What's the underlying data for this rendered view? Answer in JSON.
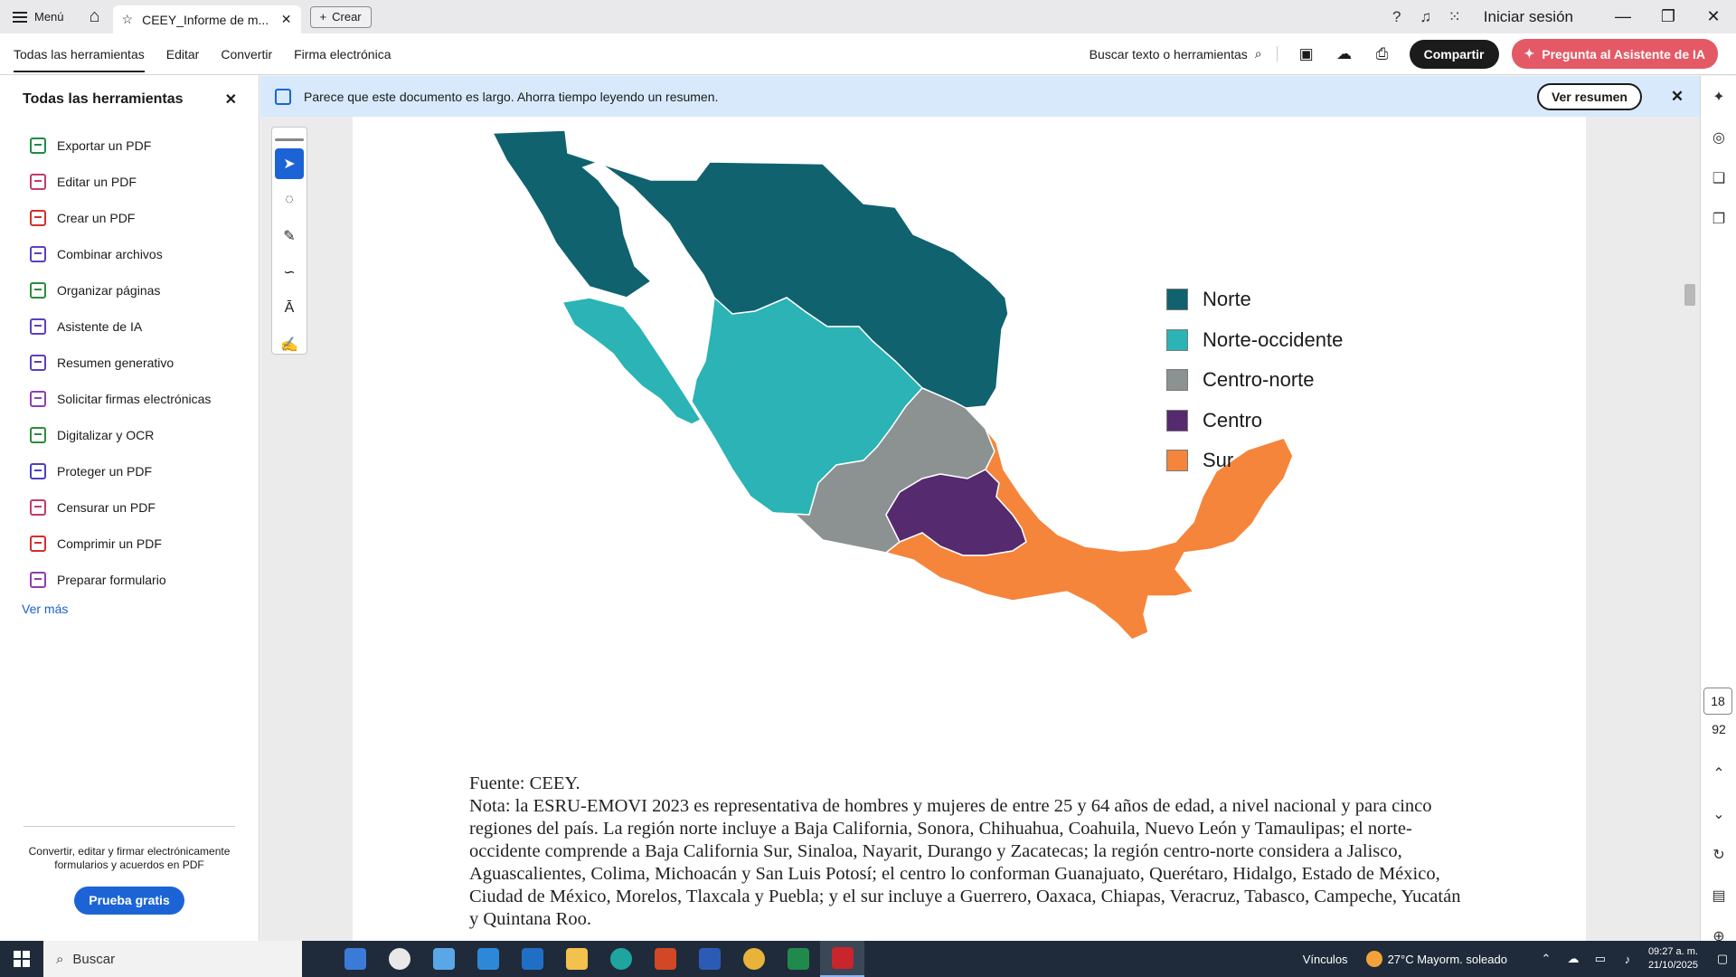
{
  "titlebar": {
    "menu_label": "Menú",
    "tab_title": "CEEY_Informe de m...",
    "create_label": "Crear",
    "signin_label": "Iniciar sesión"
  },
  "toolbar": {
    "nav": [
      "Todas las herramientas",
      "Editar",
      "Convertir",
      "Firma electrónica"
    ],
    "search_label": "Buscar texto o herramientas",
    "share_label": "Compartir",
    "ai_label": "Pregunta al Asistente de IA"
  },
  "left_panel": {
    "title": "Todas las herramientas",
    "tools": [
      {
        "label": "Exportar un PDF",
        "color": "#1e8b4a"
      },
      {
        "label": "Editar un PDF",
        "color": "#c23b6b"
      },
      {
        "label": "Crear un PDF",
        "color": "#d32f2f"
      },
      {
        "label": "Combinar archivos",
        "color": "#5b3fc4"
      },
      {
        "label": "Organizar páginas",
        "color": "#2e8b3a"
      },
      {
        "label": "Asistente de IA",
        "color": "#5b3fc4"
      },
      {
        "label": "Resumen generativo",
        "color": "#5b3fc4"
      },
      {
        "label": "Solicitar firmas electrónicas",
        "color": "#8e3fb0"
      },
      {
        "label": "Digitalizar y OCR",
        "color": "#2e8b3a"
      },
      {
        "label": "Proteger un PDF",
        "color": "#4a3fc4"
      },
      {
        "label": "Censurar un PDF",
        "color": "#c23b6b"
      },
      {
        "label": "Comprimir un PDF",
        "color": "#d32f2f"
      },
      {
        "label": "Preparar formulario",
        "color": "#8e3fb0"
      }
    ],
    "see_more": "Ver más",
    "footer_text": "Convertir, editar y firmar electrónicamente formularios y acuerdos en PDF",
    "trial_label": "Prueba gratis"
  },
  "notice": {
    "text": "Parece que este documento es largo. Ahorra tiempo leyendo un resumen.",
    "button": "Ver resumen"
  },
  "map": {
    "legend": [
      {
        "label": "Norte",
        "color": "#10626f"
      },
      {
        "label": "Norte-occidente",
        "color": "#2bb3b5"
      },
      {
        "label": "Centro-norte",
        "color": "#8c9192"
      },
      {
        "label": "Centro",
        "color": "#562a6e"
      },
      {
        "label": "Sur",
        "color": "#f5853a"
      }
    ]
  },
  "caption": {
    "source_label": "Fuente:",
    "source_value": "CEEY.",
    "note": "Nota: la ESRU-EMOVI 2023 es representativa de hombres y mujeres de entre 25 y 64 años de edad, a nivel nacional y para cinco regiones del país. La región norte incluye a Baja California, Sonora, Chihuahua, Coahuila, Nuevo León y Tamaulipas; el norte-occidente comprende a Baja California Sur, Sinaloa, Nayarit, Durango y Zacatecas; la región centro-norte considera a Jalisco, Aguascalientes, Colima, Michoacán y San Luis Potosí; el centro lo conforman Guanajuato, Querétaro, Hidalgo, Estado de México, Ciudad de México, Morelos, Tlaxcala y Puebla; y el sur incluye a Guerrero, Oaxaca, Chiapas, Veracruz, Tabasco, Campeche, Yucatán y Quintana Roo."
  },
  "right_rail": {
    "page_number": "18",
    "page_total": "92"
  },
  "taskbar": {
    "search_label": "Buscar",
    "links_label": "Vínculos",
    "weather": "27°C  Mayorm. soleado",
    "time": "09:27 a. m.",
    "date": "21/10/2025"
  }
}
